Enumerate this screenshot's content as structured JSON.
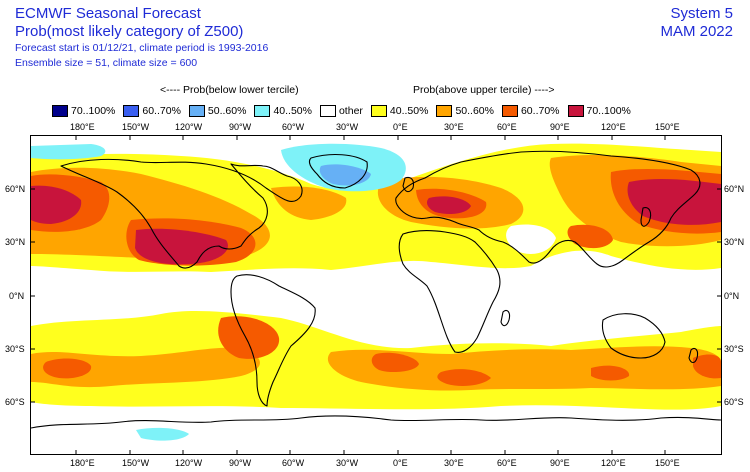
{
  "header": {
    "title": "ECMWF Seasonal Forecast",
    "subtitle": "Prob(most likely category of Z500)",
    "forecast_line": "Forecast start is 01/12/21, climate period is 1993-2016",
    "ensemble_line": "Ensemble size = 51, climate size = 600",
    "system": "System 5",
    "period": "MAM 2022"
  },
  "legend": {
    "below_label": "<---- Prob(below lower tercile)",
    "above_label": "Prob(above upper tercile) ---->",
    "items": [
      {
        "label": "70..100%",
        "color": "#00008c"
      },
      {
        "label": "60..70%",
        "color": "#3a5ff0"
      },
      {
        "label": "50..60%",
        "color": "#66b0f5"
      },
      {
        "label": "40..50%",
        "color": "#7ef2f8"
      },
      {
        "label": "other",
        "color": "#ffffff"
      },
      {
        "label": "40..50%",
        "color": "#ffff1e"
      },
      {
        "label": "50..60%",
        "color": "#ffa500"
      },
      {
        "label": "60..70%",
        "color": "#f55a00"
      },
      {
        "label": "70..100%",
        "color": "#c8143c"
      }
    ]
  },
  "axes": {
    "lon_labels": [
      "180°E",
      "150°W",
      "120°W",
      "90°W",
      "60°W",
      "30°W",
      "0°E",
      "30°E",
      "60°E",
      "90°E",
      "120°E",
      "150°E"
    ],
    "lat_labels": [
      "60°N",
      "30°N",
      "0°N",
      "30°S",
      "60°S"
    ]
  }
}
